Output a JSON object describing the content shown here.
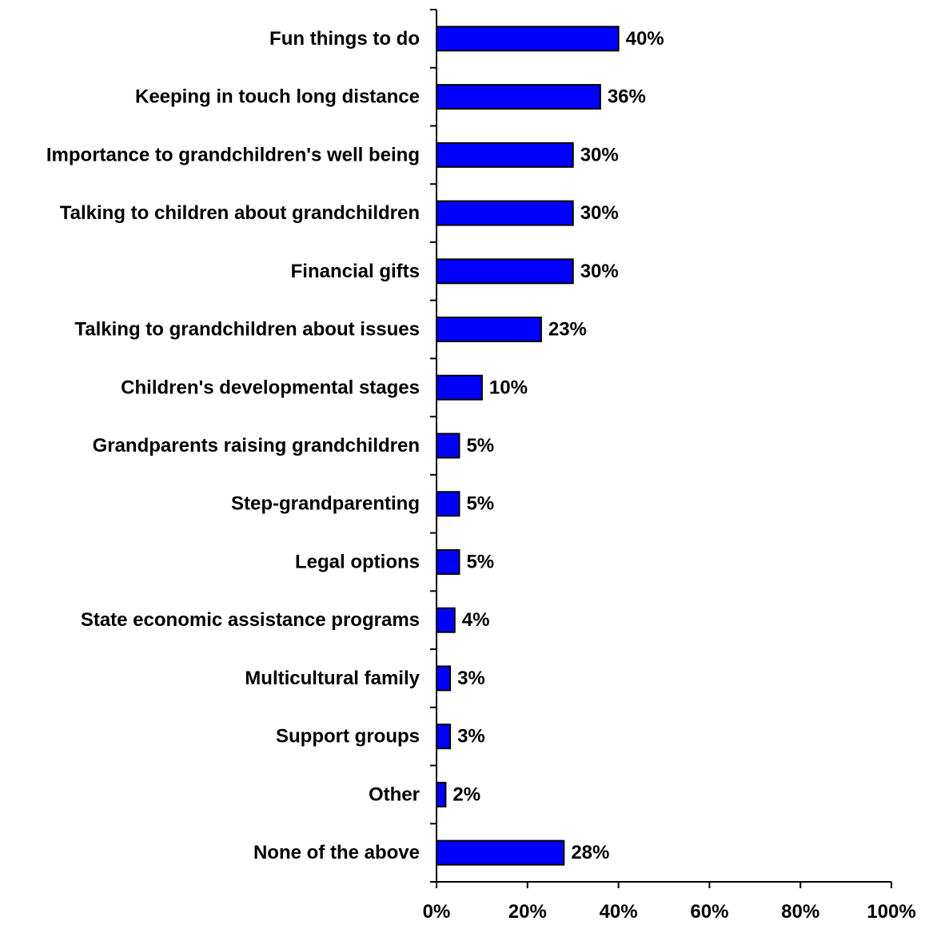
{
  "chart_data": {
    "type": "bar",
    "orientation": "horizontal",
    "title": "",
    "xlabel": "",
    "ylabel": "",
    "categories": [
      "Fun things to do",
      "Keeping in touch long distance",
      "Importance to grandchildren's well being",
      "Talking to children about grandchildren",
      "Financial gifts",
      "Talking to grandchildren about issues",
      "Children's developmental stages",
      "Grandparents raising grandchildren",
      "Step-grandparenting",
      "Legal options",
      "State economic assistance programs",
      "Multicultural family",
      "Support groups",
      "Other",
      "None of the above"
    ],
    "values": [
      40,
      36,
      30,
      30,
      30,
      23,
      10,
      5,
      5,
      5,
      4,
      3,
      3,
      2,
      28
    ],
    "value_labels": [
      "40%",
      "36%",
      "30%",
      "30%",
      "30%",
      "23%",
      "10%",
      "5%",
      "5%",
      "5%",
      "4%",
      "3%",
      "3%",
      "2%",
      "28%"
    ],
    "xlim": [
      0,
      100
    ],
    "xticks": [
      0,
      20,
      40,
      60,
      80,
      100
    ],
    "xtick_labels": [
      "0%",
      "20%",
      "40%",
      "60%",
      "80%",
      "100%"
    ],
    "bar_color": "#0000FF",
    "bar_edge_color": "#000000",
    "grid": false,
    "legend": "none"
  }
}
